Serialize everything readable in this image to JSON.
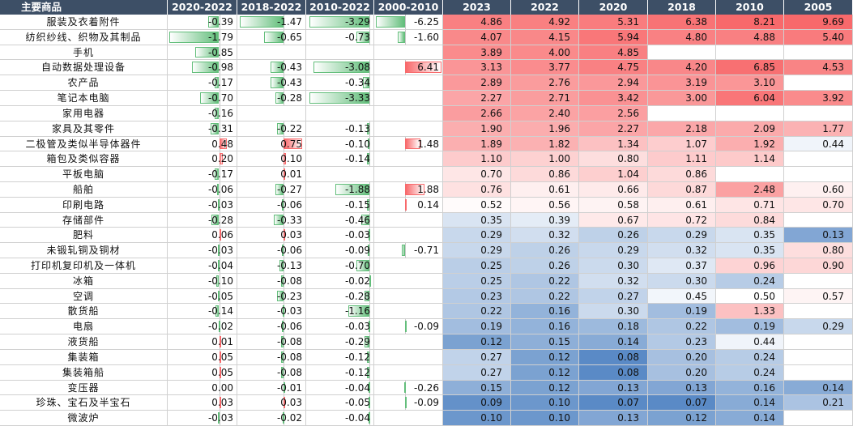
{
  "header": {
    "product": "主要商品",
    "changes": [
      "2020-2022",
      "2018-2022",
      "2010-2022",
      "2000-2010"
    ],
    "years": [
      "2023",
      "2022",
      "2020",
      "2018",
      "2010",
      "2005"
    ]
  },
  "rows": [
    {
      "name": "服装及衣着附件",
      "chg": [
        "-0.39",
        "-1.47",
        "-3.29",
        "-6.25"
      ],
      "lvl": [
        "4.86",
        "4.92",
        "5.31",
        "6.38",
        "8.21",
        "9.69"
      ]
    },
    {
      "name": "纺织纱线、织物及其制品",
      "chg": [
        "-1.79",
        "-0.65",
        "-0.73",
        "-1.60"
      ],
      "lvl": [
        "4.07",
        "4.15",
        "5.94",
        "4.80",
        "4.88",
        "5.40"
      ]
    },
    {
      "name": "手机",
      "chg": [
        "-0.85",
        "",
        "",
        ""
      ],
      "lvl": [
        "3.89",
        "4.00",
        "4.85",
        "",
        "",
        ""
      ]
    },
    {
      "name": "自动数据处理设备",
      "chg": [
        "-0.98",
        "-0.43",
        "-3.08",
        "6.41"
      ],
      "lvl": [
        "3.13",
        "3.77",
        "4.75",
        "4.20",
        "6.85",
        "4.53"
      ]
    },
    {
      "name": "农产品",
      "chg": [
        "-0.17",
        "-0.43",
        "-0.34",
        ""
      ],
      "lvl": [
        "2.89",
        "2.76",
        "2.94",
        "3.19",
        "3.10",
        ""
      ]
    },
    {
      "name": "笔记本电脑",
      "chg": [
        "-0.70",
        "-0.28",
        "-3.33",
        ""
      ],
      "lvl": [
        "2.27",
        "2.71",
        "3.42",
        "3.00",
        "6.04",
        "3.92"
      ]
    },
    {
      "name": "家用电器",
      "chg": [
        "-0.16",
        "",
        "",
        ""
      ],
      "lvl": [
        "2.66",
        "2.40",
        "2.56",
        "",
        "",
        ""
      ]
    },
    {
      "name": "家具及其零件",
      "chg": [
        "-0.31",
        "-0.22",
        "-0.13",
        ""
      ],
      "lvl": [
        "1.90",
        "1.96",
        "2.27",
        "2.18",
        "2.09",
        "1.77"
      ]
    },
    {
      "name": "二极管及类似半导体器件",
      "chg": [
        "0.48",
        "0.75",
        "-0.10",
        "1.48"
      ],
      "lvl": [
        "1.89",
        "1.82",
        "1.34",
        "1.07",
        "1.92",
        "0.44"
      ]
    },
    {
      "name": "箱包及类似容器",
      "chg": [
        "0.20",
        "0.10",
        "-0.14",
        ""
      ],
      "lvl": [
        "1.10",
        "1.00",
        "0.80",
        "1.11",
        "1.14",
        ""
      ]
    },
    {
      "name": "平板电脑",
      "chg": [
        "-0.17",
        "0.01",
        "",
        ""
      ],
      "lvl": [
        "0.70",
        "0.86",
        "1.04",
        "0.86",
        "",
        ""
      ]
    },
    {
      "name": "船舶",
      "chg": [
        "-0.06",
        "-0.27",
        "-1.88",
        "1.88"
      ],
      "lvl": [
        "0.76",
        "0.61",
        "0.66",
        "0.87",
        "2.48",
        "0.60"
      ]
    },
    {
      "name": "印刷电路",
      "chg": [
        "-0.03",
        "-0.06",
        "-0.15",
        "0.14"
      ],
      "lvl": [
        "0.52",
        "0.56",
        "0.58",
        "0.61",
        "0.71",
        "0.70"
      ]
    },
    {
      "name": "存储部件",
      "chg": [
        "-0.28",
        "-0.33",
        "-0.46",
        ""
      ],
      "lvl": [
        "0.35",
        "0.39",
        "0.67",
        "0.72",
        "0.84",
        ""
      ]
    },
    {
      "name": "肥料",
      "chg": [
        "0.06",
        "0.03",
        "-0.03",
        ""
      ],
      "lvl": [
        "0.29",
        "0.32",
        "0.26",
        "0.29",
        "0.35",
        "0.13"
      ]
    },
    {
      "name": "未锻轧铜及铜材",
      "chg": [
        "-0.03",
        "-0.06",
        "-0.09",
        "-0.71"
      ],
      "lvl": [
        "0.29",
        "0.26",
        "0.29",
        "0.32",
        "0.35",
        "0.80"
      ]
    },
    {
      "name": "打印机复印机及一体机",
      "chg": [
        "-0.04",
        "-0.13",
        "-0.70",
        ""
      ],
      "lvl": [
        "0.25",
        "0.26",
        "0.30",
        "0.37",
        "0.96",
        "0.90"
      ]
    },
    {
      "name": "冰箱",
      "chg": [
        "-0.10",
        "-0.08",
        "-0.02",
        ""
      ],
      "lvl": [
        "0.25",
        "0.22",
        "0.32",
        "0.30",
        "0.24",
        ""
      ]
    },
    {
      "name": "空调",
      "chg": [
        "-0.05",
        "-0.23",
        "-0.28",
        ""
      ],
      "lvl": [
        "0.23",
        "0.22",
        "0.27",
        "0.45",
        "0.50",
        "0.57"
      ]
    },
    {
      "name": "散货船",
      "chg": [
        "-0.14",
        "-0.03",
        "-1.16",
        ""
      ],
      "lvl": [
        "0.22",
        "0.16",
        "0.30",
        "0.19",
        "1.33",
        ""
      ]
    },
    {
      "name": "电扇",
      "chg": [
        "-0.02",
        "-0.06",
        "-0.03",
        "-0.09"
      ],
      "lvl": [
        "0.19",
        "0.16",
        "0.18",
        "0.22",
        "0.19",
        "0.29"
      ]
    },
    {
      "name": "液货船",
      "chg": [
        "0.01",
        "-0.08",
        "-0.29",
        ""
      ],
      "lvl": [
        "0.12",
        "0.15",
        "0.14",
        "0.23",
        "0.44",
        ""
      ]
    },
    {
      "name": "集装箱",
      "chg": [
        "0.05",
        "-0.08",
        "-0.12",
        ""
      ],
      "lvl": [
        "0.27",
        "0.12",
        "0.08",
        "0.20",
        "0.24",
        ""
      ]
    },
    {
      "name": "集装箱船",
      "chg": [
        "0.05",
        "-0.08",
        "-0.12",
        ""
      ],
      "lvl": [
        "0.27",
        "0.12",
        "0.08",
        "0.20",
        "0.24",
        ""
      ]
    },
    {
      "name": "变压器",
      "chg": [
        "0.00",
        "-0.01",
        "-0.04",
        "-0.26"
      ],
      "lvl": [
        "0.15",
        "0.12",
        "0.13",
        "0.13",
        "0.16",
        "0.14"
      ]
    },
    {
      "name": "珍珠、宝石及半宝石",
      "chg": [
        "0.03",
        "0.03",
        "-0.05",
        "-0.09"
      ],
      "lvl": [
        "0.09",
        "0.10",
        "0.07",
        "0.07",
        "0.14",
        "0.21"
      ]
    },
    {
      "name": "微波炉",
      "chg": [
        "-0.03",
        "-0.02",
        "-0.04",
        ""
      ],
      "lvl": [
        "0.10",
        "0.10",
        "0.13",
        "0.12",
        "0.14",
        ""
      ]
    }
  ],
  "colors": {
    "header_bg": "#3d4f66",
    "neg_bar": "#63be7b",
    "pos_bar": "#f8696b",
    "high": "#f8696b",
    "low": "#5a8ac6"
  }
}
